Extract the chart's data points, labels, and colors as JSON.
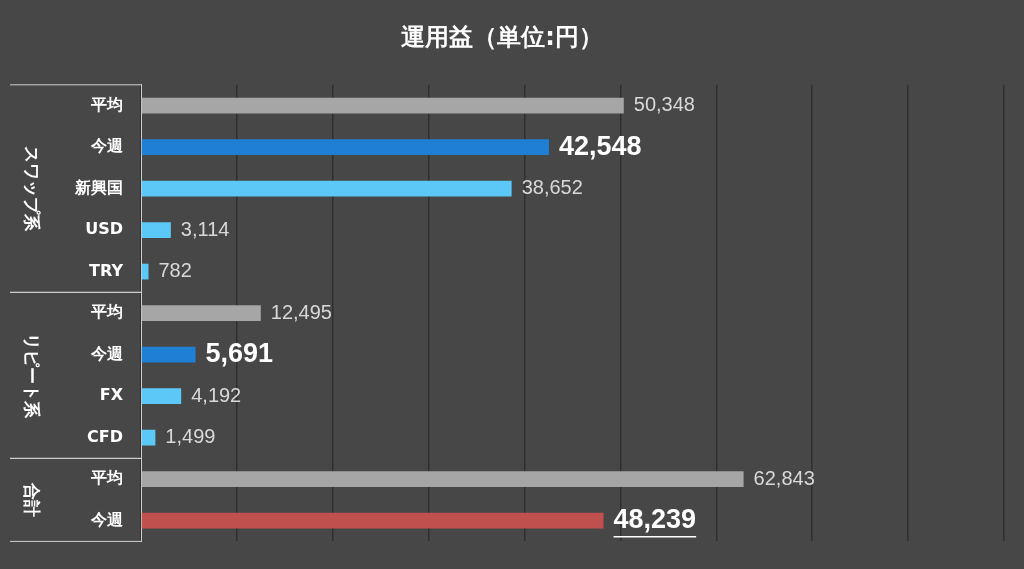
{
  "chart_data": {
    "type": "bar",
    "orientation": "horizontal",
    "title": "運用益（単位:円）",
    "categories": [
      "平均",
      "今週",
      "新興国",
      "USD",
      "TRY",
      "平均",
      "今週",
      "FX",
      "CFD",
      "平均",
      "今週"
    ],
    "values": [
      50348,
      42548,
      38652,
      3114,
      782,
      12495,
      5691,
      4192,
      1499,
      62843,
      48239
    ],
    "colors": [
      "#a6a6a6",
      "#1f7fd4",
      "#5cc8f7",
      "#5cc8f7",
      "#5cc8f7",
      "#a6a6a6",
      "#1f7fd4",
      "#5cc8f7",
      "#5cc8f7",
      "#a6a6a6",
      "#c0504d"
    ],
    "value_labels": [
      "50,348",
      "42,548",
      "38,652",
      "3,114",
      "782",
      "12,495",
      "5,691",
      "4,192",
      "1,499",
      "62,843",
      "48,239"
    ],
    "annotations": [
      "スワップ系",
      "リピート系",
      "合計"
    ],
    "xlim": [
      0,
      90000
    ],
    "xticks": [
      {
        "value": 0,
        "label": null
      },
      {
        "value": 10000,
        "label": null
      },
      {
        "value": 20000,
        "label": null
      },
      {
        "value": 30000,
        "label": null
      },
      {
        "value": 40000,
        "label": null
      },
      {
        "value": 50000,
        "label": null
      },
      {
        "value": 60000,
        "label": null
      },
      {
        "value": 70000,
        "label": null
      },
      {
        "value": 80000,
        "label": null
      },
      {
        "value": 90000,
        "label": null
      }
    ],
    "tick_labels": "y",
    "grid": "x"
  }
}
